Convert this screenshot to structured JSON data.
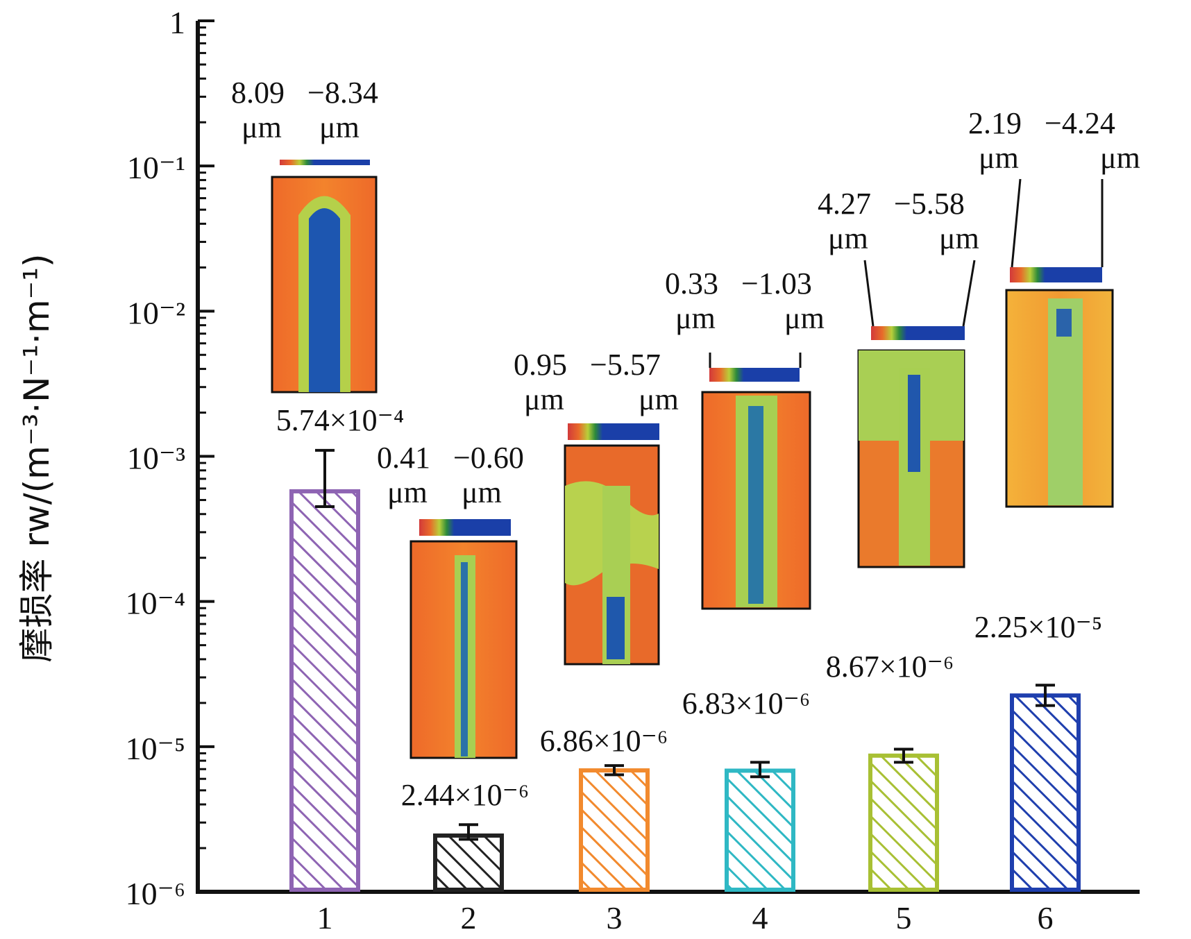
{
  "chart_data": {
    "type": "bar",
    "categories": [
      "1",
      "2",
      "3",
      "4",
      "5",
      "6"
    ],
    "values": [
      0.000574,
      2.44e-06,
      6.86e-06,
      6.83e-06,
      8.67e-06,
      2.25e-05
    ],
    "value_labels": [
      "5.74×10⁻⁴",
      "2.44×10⁻⁶",
      "6.86×10⁻⁶",
      "6.83×10⁻⁶",
      "8.67×10⁻⁶",
      "2.25×10⁻⁵"
    ],
    "error_low": [
      0.00045,
      2.3e-06,
      6.4e-06,
      6.2e-06,
      7.8e-06,
      1.92e-05
    ],
    "error_high": [
      0.0011,
      2.9e-06,
      7.4e-06,
      7.8e-06,
      9.6e-06,
      2.65e-05
    ],
    "ylabel": "摩损率 rw/(m⁻³·N⁻¹·m⁻¹)",
    "y_scale": "log",
    "ylim": [
      1e-06,
      1
    ],
    "y_tick_labels": [
      "1",
      "10⁻¹",
      "10⁻²",
      "10⁻³",
      "10⁻⁴",
      "10⁻⁵",
      "10⁻⁶"
    ],
    "bar_colors": [
      "#8e64b3",
      "#222222",
      "#f28a2e",
      "#2fb8c4",
      "#a8c034",
      "#1f3fae"
    ],
    "bar_pattern": "diagonal-hatch",
    "depth_ranges": [
      {
        "low": "8.09",
        "high": "−8.34",
        "low_unit": "μm",
        "high_unit": "μm"
      },
      {
        "low": "0.41",
        "high": "−0.60",
        "low_unit": "μm",
        "high_unit": "μm"
      },
      {
        "low": "0.95",
        "high": "−5.57",
        "low_unit": "μm",
        "high_unit": "μm"
      },
      {
        "low": "0.33",
        "high": "−1.03",
        "low_unit": "μm",
        "high_unit": "μm"
      },
      {
        "low": "4.27",
        "high": "−5.58",
        "low_unit": "μm",
        "high_unit": "μm"
      },
      {
        "low": "2.19",
        "high": "−4.24",
        "low_unit": "μm",
        "high_unit": "μm"
      }
    ]
  }
}
